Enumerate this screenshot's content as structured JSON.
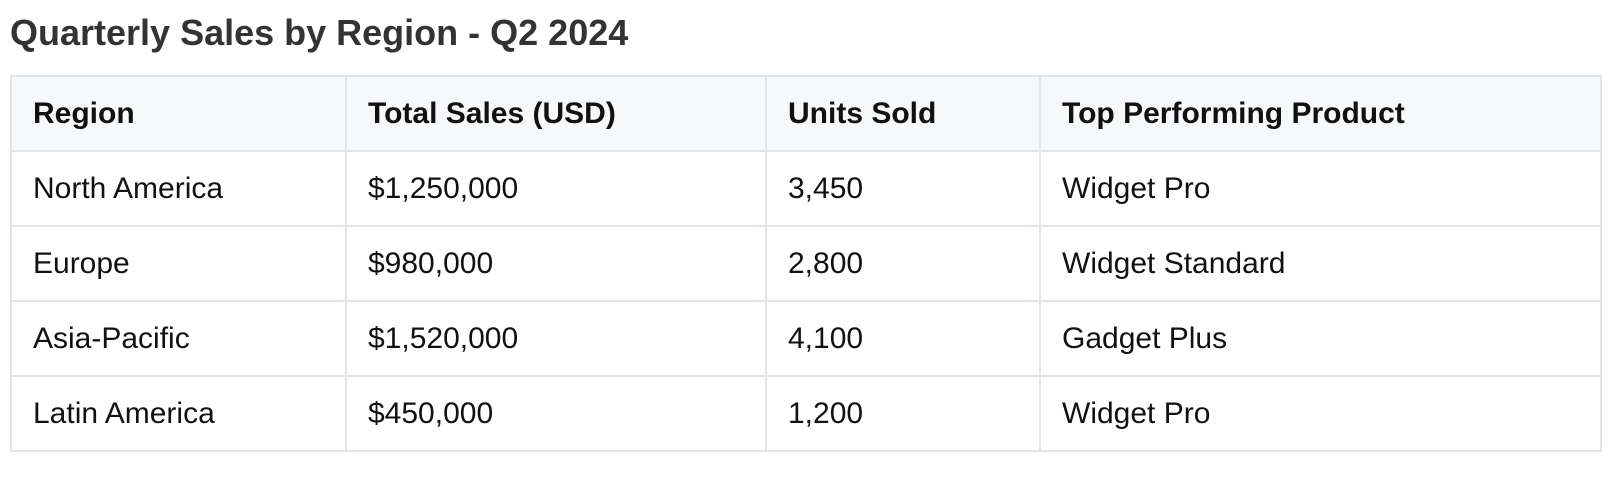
{
  "title": "Quarterly Sales by Region - Q2 2024",
  "chart_data": {
    "type": "table",
    "title": "Quarterly Sales by Region - Q2 2024",
    "columns": [
      "Region",
      "Total Sales (USD)",
      "Units Sold",
      "Top Performing Product"
    ],
    "rows": [
      [
        "North America",
        "$1,250,000",
        "3,450",
        "Widget Pro"
      ],
      [
        "Europe",
        "$980,000",
        "2,800",
        "Widget Standard"
      ],
      [
        "Asia-Pacific",
        "$1,520,000",
        "4,100",
        "Gadget Plus"
      ],
      [
        "Latin America",
        "$450,000",
        "1,200",
        "Widget Pro"
      ]
    ]
  }
}
